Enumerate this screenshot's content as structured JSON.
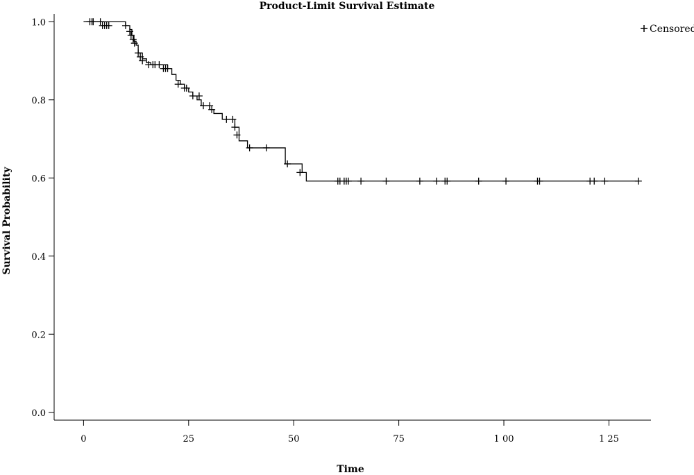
{
  "chart_data": {
    "type": "line",
    "title": "Product-Limit Survival Estimate",
    "xlabel": "Time",
    "ylabel": "Survival Probability",
    "xlim": [
      -7,
      135
    ],
    "ylim": [
      -0.02,
      1.02
    ],
    "x_ticks": [
      0,
      25,
      50,
      75,
      100,
      125
    ],
    "x_tick_labels": [
      "0",
      "25",
      "50",
      "75",
      "1 00",
      "1 25"
    ],
    "y_ticks": [
      0.0,
      0.2,
      0.4,
      0.6,
      0.8,
      1.0
    ],
    "y_tick_labels": [
      "0.0",
      "0.2",
      "0.4",
      "0.6",
      "0.8",
      "1.0"
    ],
    "grid": false,
    "legend": {
      "position": "top-right",
      "entries": [
        {
          "marker": "+",
          "label": "Censored"
        }
      ]
    },
    "series": [
      {
        "type": "step",
        "x": [
          0,
          10,
          11,
          11.5,
          12,
          12.5,
          13,
          14,
          15,
          16,
          20,
          21,
          22,
          23,
          24,
          25,
          26,
          27,
          28,
          30,
          31,
          33,
          36,
          37,
          39,
          48,
          52,
          53,
          132
        ],
        "y": [
          1.0,
          0.99,
          0.98,
          0.965,
          0.95,
          0.94,
          0.92,
          0.905,
          0.895,
          0.89,
          0.88,
          0.865,
          0.85,
          0.84,
          0.83,
          0.82,
          0.81,
          0.8,
          0.785,
          0.775,
          0.765,
          0.75,
          0.73,
          0.695,
          0.677,
          0.636,
          0.614,
          0.592,
          0.592
        ]
      }
    ],
    "censored": {
      "x": [
        1.5,
        2,
        2.3,
        4,
        4.5,
        5,
        5.5,
        6,
        10,
        11,
        11.3,
        11.8,
        12.1,
        13,
        13.5,
        14,
        15.5,
        16.5,
        17,
        18,
        19,
        19.5,
        20,
        22.5,
        24,
        24.5,
        26,
        27.5,
        28.5,
        30,
        30.5,
        34,
        35.5,
        36,
        36.5,
        39.5,
        43.5,
        48.5,
        51.5,
        60.5,
        61,
        62,
        62.5,
        63,
        66,
        72,
        80,
        84,
        86,
        86.5,
        94,
        100.5,
        108,
        108.5,
        120.5,
        121.5,
        124,
        132
      ],
      "y": [
        1.0,
        1.0,
        1.0,
        1.0,
        0.99,
        0.99,
        0.99,
        0.99,
        0.99,
        0.975,
        0.965,
        0.955,
        0.945,
        0.92,
        0.91,
        0.9,
        0.89,
        0.89,
        0.89,
        0.89,
        0.88,
        0.88,
        0.88,
        0.84,
        0.83,
        0.83,
        0.81,
        0.81,
        0.785,
        0.785,
        0.775,
        0.75,
        0.75,
        0.73,
        0.71,
        0.677,
        0.677,
        0.636,
        0.614,
        0.592,
        0.592,
        0.592,
        0.592,
        0.592,
        0.592,
        0.592,
        0.592,
        0.592,
        0.592,
        0.592,
        0.592,
        0.592,
        0.592,
        0.592,
        0.592,
        0.592,
        0.592,
        0.592
      ]
    }
  }
}
